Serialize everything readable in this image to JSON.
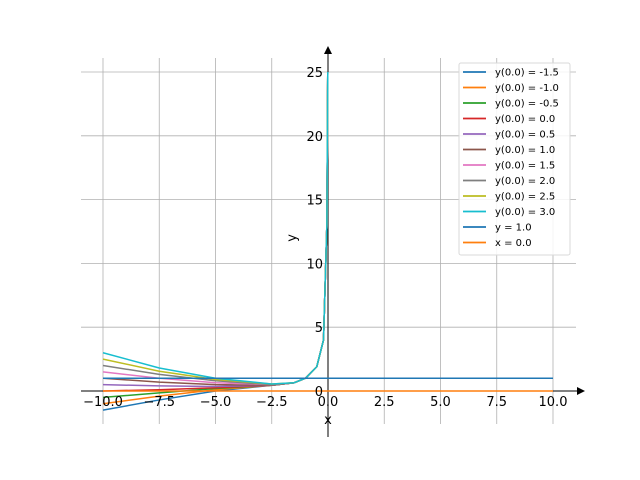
{
  "chart_data": {
    "type": "line",
    "title": "",
    "xlabel": "x",
    "ylabel": "y",
    "xlim": [
      -10.0,
      10.0
    ],
    "ylim": [
      0,
      25
    ],
    "grid": true,
    "legend_position": "top-right",
    "x_ticks": [
      -10.0,
      -7.5,
      -5.0,
      -2.5,
      0.0,
      2.5,
      5.0,
      7.5,
      10.0
    ],
    "x_tick_labels": [
      "−10.0",
      "−7.5",
      "−5.0",
      "−2.5",
      "0.0",
      "2.5",
      "5.0",
      "7.5",
      "10.0"
    ],
    "y_ticks": [
      0,
      5,
      10,
      15,
      20,
      25
    ],
    "y_tick_labels": [
      "0",
      "5",
      "10",
      "15",
      "20",
      "25"
    ],
    "series": [
      {
        "name": "y(0.0) = -1.5",
        "color": "#1f77b4",
        "x": [
          -10.0,
          -7.5,
          -5.0,
          -2.5,
          -1.5,
          -1.0,
          -0.5,
          -0.2,
          -0.05,
          -0.01
        ],
        "y": [
          -1.5,
          -0.7,
          0.0,
          0.45,
          0.65,
          1.0,
          1.9,
          4.0,
          13.0,
          25.0
        ]
      },
      {
        "name": "y(0.0) = -1.0",
        "color": "#ff7f0e",
        "x": [
          -10.0,
          -7.5,
          -5.0,
          -2.5,
          -1.5,
          -1.0,
          -0.5,
          -0.2,
          -0.05,
          -0.01
        ],
        "y": [
          -1.0,
          -0.4,
          0.1,
          0.45,
          0.65,
          1.0,
          1.9,
          4.0,
          13.0,
          25.0
        ]
      },
      {
        "name": "y(0.0) = -0.5",
        "color": "#2ca02c",
        "x": [
          -10.0,
          -7.5,
          -5.0,
          -2.5,
          -1.5,
          -1.0,
          -0.5,
          -0.2,
          -0.05,
          -0.01
        ],
        "y": [
          -0.5,
          -0.15,
          0.2,
          0.45,
          0.65,
          1.0,
          1.9,
          4.0,
          13.0,
          25.0
        ]
      },
      {
        "name": "y(0.0) = 0.0",
        "color": "#d62728",
        "x": [
          -10.0,
          -7.5,
          -5.0,
          -2.5,
          -1.5,
          -1.0,
          -0.5,
          -0.2,
          -0.05,
          -0.01
        ],
        "y": [
          0.0,
          0.1,
          0.25,
          0.45,
          0.65,
          1.0,
          1.9,
          4.0,
          13.0,
          25.0
        ]
      },
      {
        "name": "y(0.0) = 0.5",
        "color": "#9467bd",
        "x": [
          -10.0,
          -7.5,
          -5.0,
          -2.5,
          -1.5,
          -1.0,
          -0.5,
          -0.2,
          -0.05,
          -0.01
        ],
        "y": [
          0.5,
          0.4,
          0.35,
          0.45,
          0.65,
          1.0,
          1.9,
          4.0,
          13.0,
          25.0
        ]
      },
      {
        "name": "y(0.0) = 1.0",
        "color": "#8c564b",
        "x": [
          -10.0,
          -7.5,
          -5.0,
          -2.5,
          -1.5,
          -1.0,
          -0.5,
          -0.2,
          -0.05,
          -0.01
        ],
        "y": [
          1.0,
          0.7,
          0.5,
          0.45,
          0.65,
          1.0,
          1.9,
          4.0,
          13.0,
          25.0
        ]
      },
      {
        "name": "y(0.0) = 1.5",
        "color": "#e377c2",
        "x": [
          -10.0,
          -7.5,
          -5.0,
          -2.5,
          -1.5,
          -1.0,
          -0.5,
          -0.2,
          -0.05,
          -0.01
        ],
        "y": [
          1.5,
          1.0,
          0.65,
          0.5,
          0.65,
          1.0,
          1.9,
          4.0,
          13.0,
          25.0
        ]
      },
      {
        "name": "y(0.0) = 2.0",
        "color": "#7f7f7f",
        "x": [
          -10.0,
          -7.5,
          -5.0,
          -2.5,
          -1.5,
          -1.0,
          -0.5,
          -0.2,
          -0.05,
          -0.01
        ],
        "y": [
          2.0,
          1.3,
          0.8,
          0.5,
          0.65,
          1.0,
          1.9,
          4.0,
          13.0,
          25.0
        ]
      },
      {
        "name": "y(0.0) = 2.5",
        "color": "#bcbd22",
        "x": [
          -10.0,
          -7.5,
          -5.0,
          -2.5,
          -1.5,
          -1.0,
          -0.5,
          -0.2,
          -0.05,
          -0.01
        ],
        "y": [
          2.5,
          1.55,
          0.9,
          0.55,
          0.65,
          1.0,
          1.9,
          4.0,
          13.0,
          25.0
        ]
      },
      {
        "name": "y(0.0) = 3.0",
        "color": "#17becf",
        "x": [
          -10.0,
          -7.5,
          -5.0,
          -2.5,
          -1.5,
          -1.0,
          -0.5,
          -0.2,
          -0.05,
          -0.01
        ],
        "y": [
          3.0,
          1.8,
          1.0,
          0.55,
          0.65,
          1.0,
          1.9,
          4.0,
          13.0,
          25.0
        ]
      },
      {
        "name": "y = 1.0",
        "color": "#1f77b4",
        "x": [
          -10.0,
          10.0
        ],
        "y": [
          1.0,
          1.0
        ]
      },
      {
        "name": "x = 0.0",
        "color": "#ff7f0e",
        "x": [
          -10.0,
          10.0
        ],
        "y": [
          0.0,
          0.0
        ]
      }
    ]
  }
}
